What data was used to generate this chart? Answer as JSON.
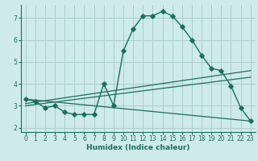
{
  "xlabel": "Humidex (Indice chaleur)",
  "bg_color": "#ceeaea",
  "grid_color": "#aacece",
  "line_color": "#1a6e60",
  "xlim": [
    -0.5,
    23.5
  ],
  "ylim": [
    1.8,
    7.6
  ],
  "yticks": [
    2,
    3,
    4,
    5,
    6,
    7
  ],
  "xticks": [
    0,
    1,
    2,
    3,
    4,
    5,
    6,
    7,
    8,
    9,
    10,
    11,
    12,
    13,
    14,
    15,
    16,
    17,
    18,
    19,
    20,
    21,
    22,
    23
  ],
  "series1_x": [
    0,
    1,
    2,
    3,
    4,
    5,
    6,
    7,
    8,
    9,
    10,
    11,
    12,
    13,
    14,
    15,
    16,
    17,
    18,
    19,
    20,
    21,
    22,
    23
  ],
  "series1_y": [
    3.3,
    3.2,
    2.9,
    3.0,
    2.7,
    2.6,
    2.6,
    2.6,
    4.0,
    3.0,
    5.5,
    6.5,
    7.1,
    7.1,
    7.3,
    7.1,
    6.6,
    6.0,
    5.3,
    4.7,
    4.6,
    3.9,
    2.9,
    2.3
  ],
  "series2_x": [
    0,
    23
  ],
  "series2_y": [
    3.1,
    4.6
  ],
  "series3_x": [
    0,
    23
  ],
  "series3_y": [
    3.0,
    4.3
  ],
  "series4_x": [
    0,
    23
  ],
  "series4_y": [
    3.3,
    2.3
  ]
}
